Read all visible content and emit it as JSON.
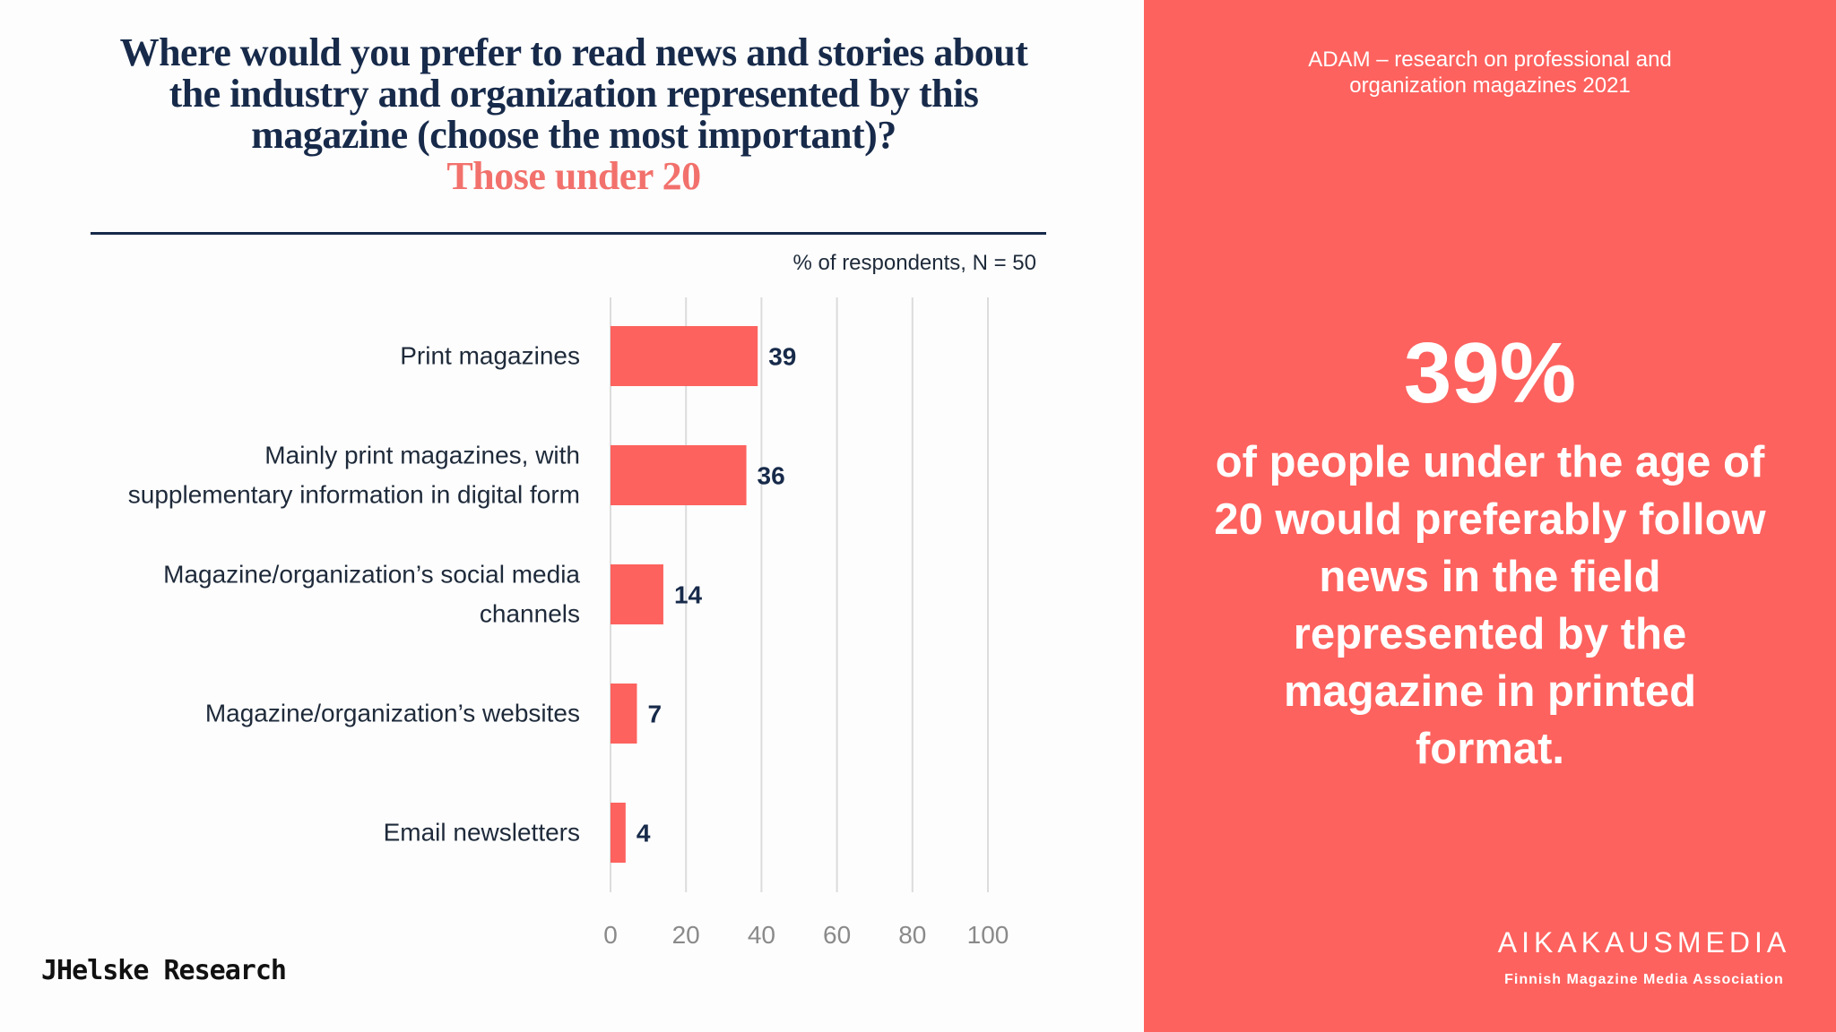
{
  "header": {
    "title_lines": [
      "Where would you prefer to read news and stories about",
      "the industry and organization represented by this",
      "magazine (choose the most important)?"
    ],
    "subtitle": "Those under 20"
  },
  "unit_note": "% of respondents, N = 50",
  "source": "JHelske Research",
  "right_panel": {
    "study_lines": [
      "ADAM – research on professional and",
      "organization magazines 2021"
    ],
    "big_stat": "39%",
    "stat_text": "of people under the age of 20 would preferably follow news in the field represented by the magazine in printed format.",
    "logo_word": "AIKAKAUSMEDIA",
    "logo_sub": "Finnish Magazine Media Association"
  },
  "colors": {
    "bar": "#fd625e",
    "accent": "#f2716c",
    "navy": "#172a4a",
    "grid": "#dcdcdc",
    "tick": "#8a8a8a",
    "panel": "#fd625e"
  },
  "chart_data": {
    "type": "bar",
    "orientation": "horizontal",
    "categories": [
      [
        "Print magazines"
      ],
      [
        "Mainly print magazines, with",
        "supplementary information in digital form"
      ],
      [
        "Magazine/organization’s social media",
        "channels"
      ],
      [
        "Magazine/organization’s websites"
      ],
      [
        "Email newsletters"
      ]
    ],
    "values": [
      39,
      36,
      14,
      7,
      4
    ],
    "xlim": [
      0,
      100
    ],
    "xticks": [
      "0",
      "20",
      "40",
      "60",
      "80",
      "100"
    ],
    "grid": true,
    "legend": "none"
  }
}
